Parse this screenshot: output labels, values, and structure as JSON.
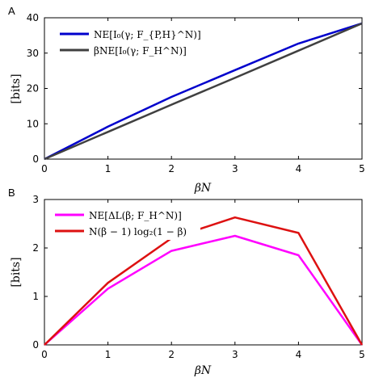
{
  "chart_data": [
    {
      "panel": "A",
      "type": "line",
      "xlabel": "βN",
      "ylabel": "[bits]",
      "xlim": [
        0,
        5
      ],
      "ylim": [
        0,
        40
      ],
      "xticks": [
        "0",
        "1",
        "2",
        "3",
        "4",
        "5"
      ],
      "yticks": [
        "0",
        "10",
        "20",
        "30",
        "40"
      ],
      "legend_position": "top-left",
      "series": [
        {
          "name": "NE[I₀(γ; F_{P,H}^N)]",
          "color": "#0000cc",
          "x": [
            0,
            1,
            2,
            3,
            4,
            5
          ],
          "y": [
            0,
            9.2,
            17.6,
            25.2,
            32.7,
            38.4
          ]
        },
        {
          "name": "βNE[I₀(γ; F_H^N)]",
          "color": "#404040",
          "x": [
            0,
            1,
            2,
            3,
            4,
            5
          ],
          "y": [
            0,
            7.7,
            15.4,
            23.0,
            30.7,
            38.4
          ]
        }
      ]
    },
    {
      "panel": "B",
      "type": "line",
      "xlabel": "βN",
      "ylabel": "[bits]",
      "xlim": [
        0,
        5
      ],
      "ylim": [
        0,
        3
      ],
      "xticks": [
        "0",
        "1",
        "2",
        "3",
        "4",
        "5"
      ],
      "yticks": [
        "0",
        "1",
        "2",
        "3"
      ],
      "legend_position": "top-left",
      "series": [
        {
          "name": "NE[ΔL(β; F_H^N)]",
          "color": "#ff00ff",
          "x": [
            0,
            1,
            2,
            3,
            4,
            5
          ],
          "y": [
            0,
            1.16,
            1.94,
            2.25,
            1.85,
            0
          ]
        },
        {
          "name": "N(β − 1) log₂(1 − β)",
          "color": "#dd1111",
          "x": [
            0,
            1,
            2,
            3,
            4,
            5
          ],
          "y": [
            0,
            1.28,
            2.2,
            2.63,
            2.31,
            0
          ]
        }
      ]
    }
  ]
}
